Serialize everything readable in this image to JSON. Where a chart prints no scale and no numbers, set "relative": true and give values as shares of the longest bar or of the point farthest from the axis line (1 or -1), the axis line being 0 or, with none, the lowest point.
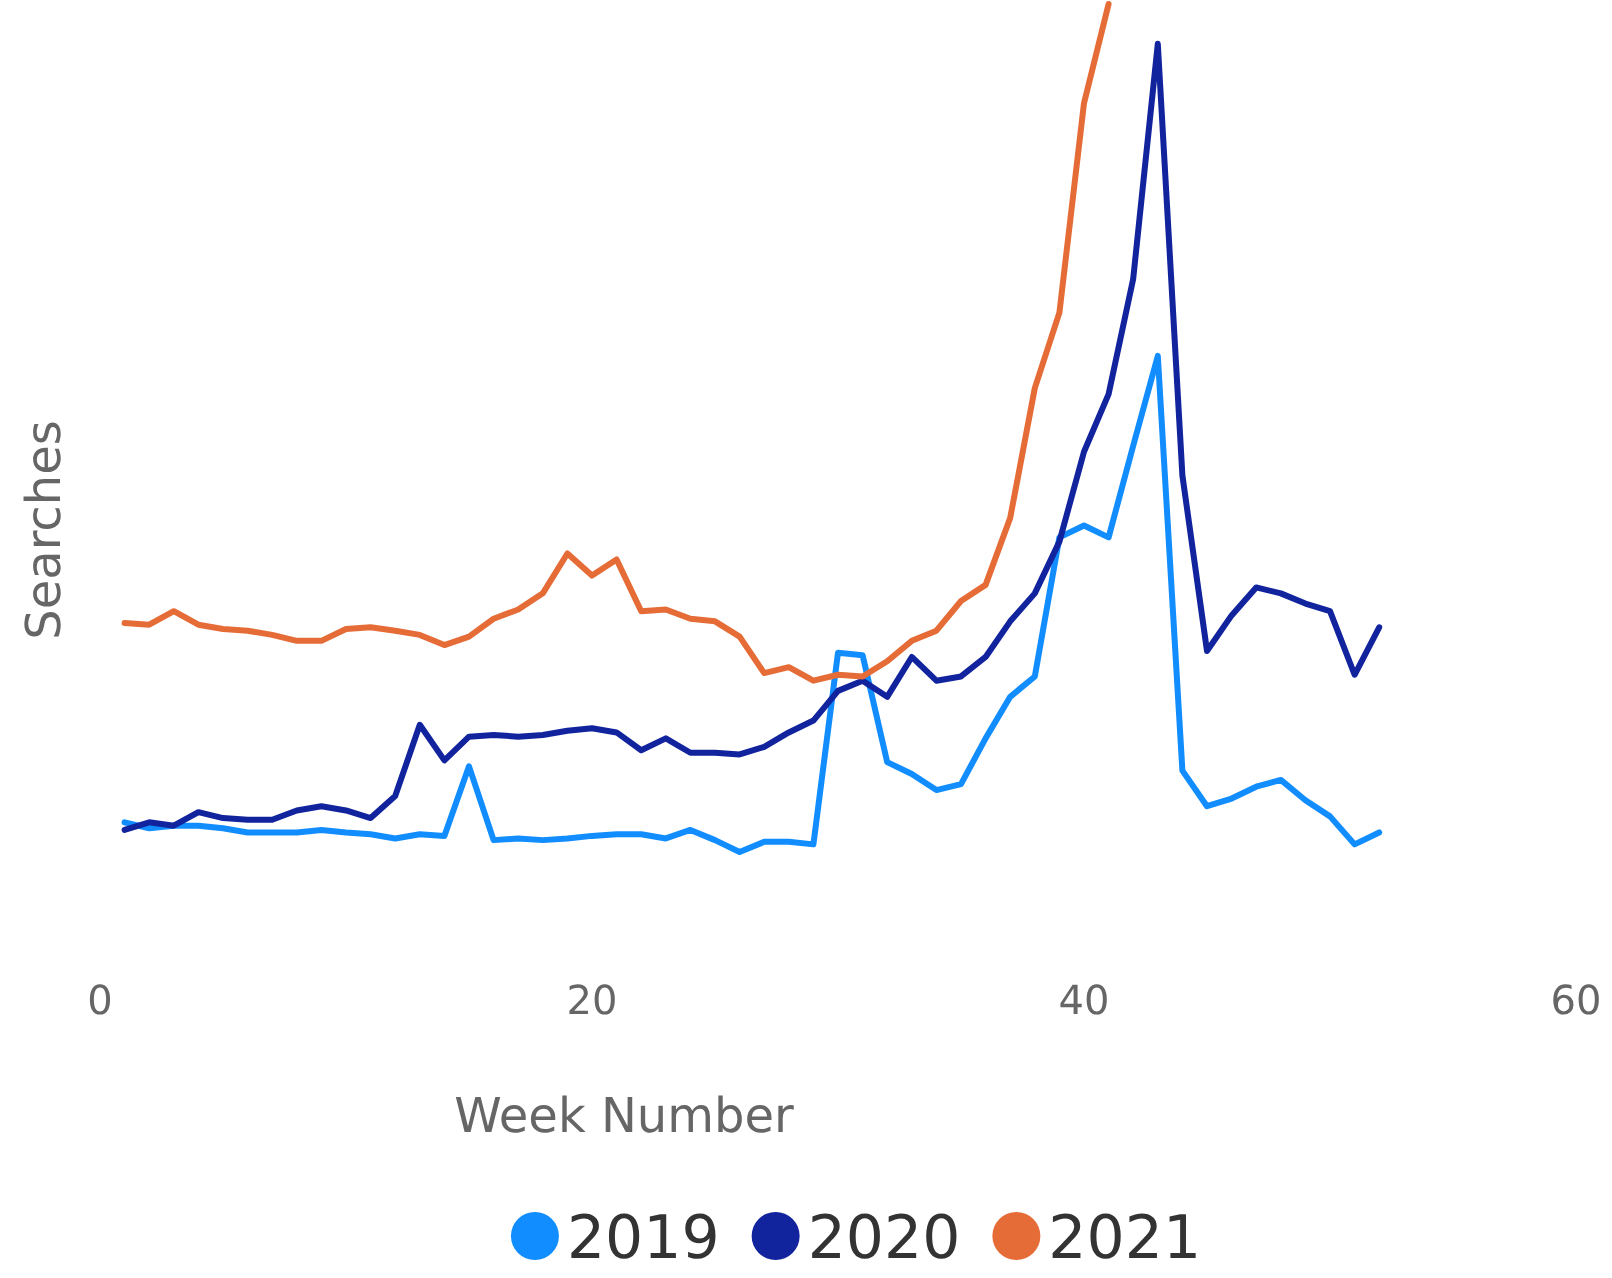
{
  "chart_data": {
    "type": "line",
    "relative": true,
    "xlabel": "Week Number",
    "ylabel": "Searches",
    "xlim": [
      0,
      60
    ],
    "xticks": [
      0,
      20,
      40,
      60
    ],
    "grid": false,
    "legend": "bottom",
    "marker": "none",
    "line_style": "solid",
    "x": [
      1,
      2,
      3,
      4,
      5,
      6,
      7,
      8,
      9,
      10,
      11,
      12,
      13,
      14,
      15,
      16,
      17,
      18,
      19,
      20,
      21,
      22,
      23,
      24,
      25,
      26,
      27,
      28,
      29,
      30,
      31,
      32,
      33,
      34,
      35,
      36,
      37,
      38,
      39,
      40,
      41,
      42,
      43,
      44,
      45,
      46,
      47,
      48,
      49,
      50,
      51,
      52
    ],
    "series": [
      {
        "name": "2019",
        "color": "#118dff",
        "values": [
          0.035,
          0.028,
          0.031,
          0.031,
          0.028,
          0.023,
          0.023,
          0.023,
          0.026,
          0.023,
          0.021,
          0.016,
          0.021,
          0.019,
          0.101,
          0.014,
          0.016,
          0.014,
          0.016,
          0.019,
          0.021,
          0.021,
          0.016,
          0.026,
          0.014,
          0,
          0.012,
          0.012,
          0.009,
          0.235,
          0.232,
          0.106,
          0.092,
          0.073,
          0.08,
          0.134,
          0.183,
          0.207,
          0.371,
          0.385,
          0.371,
          0.479,
          0.585,
          0.096,
          0.054,
          0.063,
          0.077,
          0.085,
          0.061,
          0.042,
          0.009,
          0.023
        ]
      },
      {
        "name": "2020",
        "color": "#12239e",
        "values": [
          0.026,
          0.035,
          0.031,
          0.047,
          0.04,
          0.038,
          0.038,
          0.049,
          0.054,
          0.049,
          0.04,
          0.066,
          0.15,
          0.108,
          0.136,
          0.138,
          0.136,
          0.138,
          0.143,
          0.146,
          0.141,
          0.12,
          0.134,
          0.117,
          0.117,
          0.115,
          0.124,
          0.141,
          0.155,
          0.19,
          0.202,
          0.183,
          0.23,
          0.202,
          0.207,
          0.23,
          0.272,
          0.305,
          0.366,
          0.472,
          0.54,
          0.676,
          0.953,
          0.444,
          0.237,
          0.279,
          0.312,
          0.305,
          0.293,
          0.284,
          0.209,
          0.265
        ]
      },
      {
        "name": "2021",
        "color": "#e66c37",
        "x": [
          1,
          2,
          3,
          4,
          5,
          6,
          7,
          8,
          9,
          10,
          11,
          12,
          13,
          14,
          15,
          16,
          17,
          18,
          19,
          20,
          21,
          22,
          23,
          24,
          25,
          26,
          27,
          28,
          29,
          30,
          31,
          32,
          33,
          34,
          35,
          36,
          37,
          38,
          39,
          40,
          41
        ],
        "values": [
          0.27,
          0.268,
          0.284,
          0.268,
          0.263,
          0.261,
          0.256,
          0.249,
          0.249,
          0.263,
          0.265,
          0.261,
          0.256,
          0.244,
          0.254,
          0.275,
          0.286,
          0.305,
          0.352,
          0.326,
          0.345,
          0.284,
          0.286,
          0.275,
          0.272,
          0.254,
          0.211,
          0.218,
          0.202,
          0.209,
          0.207,
          0.225,
          0.249,
          0.261,
          0.296,
          0.315,
          0.394,
          0.547,
          0.636,
          0.883,
          1
        ]
      }
    ]
  }
}
